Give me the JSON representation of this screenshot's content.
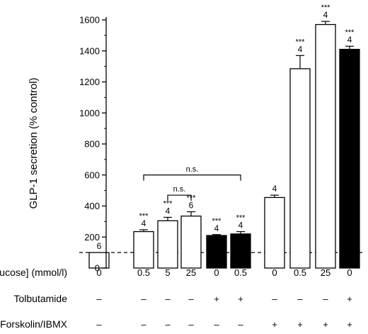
{
  "chart_data": {
    "type": "bar",
    "ylabel": "GLP-1 secretion (% control)",
    "ylim": [
      0,
      1650
    ],
    "yticks": [
      0,
      200,
      400,
      600,
      800,
      1000,
      1200,
      1400,
      1600
    ],
    "reference_line": 100,
    "bars": [
      {
        "glucose": "0",
        "tolbutamide": "–",
        "forskolin": "–",
        "value": 100,
        "error": 0,
        "n": "6",
        "sig": "",
        "fill": "white"
      },
      {
        "glucose": "0.5",
        "tolbutamide": "–",
        "forskolin": "–",
        "value": 235,
        "error": 12,
        "n": "4",
        "sig": "***",
        "fill": "white"
      },
      {
        "glucose": "5",
        "tolbutamide": "–",
        "forskolin": "–",
        "value": 305,
        "error": 22,
        "n": "4",
        "sig": "***",
        "fill": "white"
      },
      {
        "glucose": "25",
        "tolbutamide": "–",
        "forskolin": "–",
        "value": 335,
        "error": 28,
        "n": "6",
        "sig": "***",
        "fill": "white"
      },
      {
        "glucose": "0",
        "tolbutamide": "+",
        "forskolin": "–",
        "value": 210,
        "error": 6,
        "n": "4",
        "sig": "***",
        "fill": "black"
      },
      {
        "glucose": "0.5",
        "tolbutamide": "+",
        "forskolin": "–",
        "value": 220,
        "error": 15,
        "n": "4",
        "sig": "***",
        "fill": "black"
      },
      {
        "glucose": "0",
        "tolbutamide": "–",
        "forskolin": "+",
        "value": 455,
        "error": 15,
        "n": "4",
        "sig": "",
        "fill": "white"
      },
      {
        "glucose": "0.5",
        "tolbutamide": "–",
        "forskolin": "+",
        "value": 1285,
        "error": 85,
        "n": "4",
        "sig": "***",
        "fill": "white"
      },
      {
        "glucose": "25",
        "tolbutamide": "–",
        "forskolin": "+",
        "value": 1570,
        "error": 20,
        "n": "4",
        "sig": "***",
        "fill": "white"
      },
      {
        "glucose": "0",
        "tolbutamide": "+",
        "forskolin": "+",
        "value": 1410,
        "error": 20,
        "n": "4",
        "sig": "***",
        "fill": "black"
      }
    ],
    "brackets": [
      {
        "from_bar": 1,
        "to_bar": 5,
        "y_value": 600,
        "label": "n.s."
      },
      {
        "from_bar": 2,
        "to_bar": 3,
        "y_value": 470,
        "label": "n.s."
      }
    ],
    "rows": [
      {
        "label": "[Glucose] (mmol/l)",
        "key": "glucose"
      },
      {
        "label": "Tolbutamide",
        "key": "tolbutamide"
      },
      {
        "label": "Forskolin/IBMX",
        "key": "forskolin"
      }
    ]
  }
}
